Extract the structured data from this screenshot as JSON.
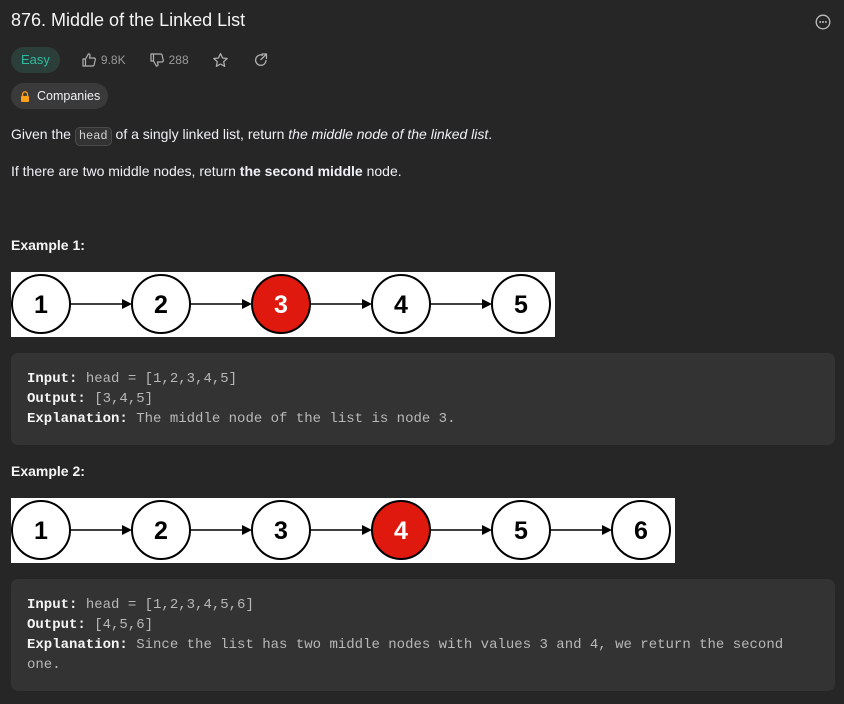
{
  "problem": {
    "title": "876. Middle of the Linked List",
    "difficulty": "Easy",
    "likes": "9.8K",
    "dislikes": "288",
    "companies_label": "Companies"
  },
  "description": {
    "p1_a": "Given the ",
    "p1_code": "head",
    "p1_b": " of a singly linked list, return ",
    "p1_em": "the middle node of the linked list",
    "p1_c": ".",
    "p2_a": "If there are two middle nodes, return ",
    "p2_strong": "the second middle",
    "p2_b": " node."
  },
  "examples": [
    {
      "title": "Example 1:",
      "nodes": [
        "1",
        "2",
        "3",
        "4",
        "5"
      ],
      "highlight_index": 2,
      "input_label": "Input:",
      "input_value": " head = [1,2,3,4,5]",
      "output_label": "Output:",
      "output_value": " [3,4,5]",
      "explanation_label": "Explanation:",
      "explanation_value": " The middle node of the list is node 3."
    },
    {
      "title": "Example 2:",
      "nodes": [
        "1",
        "2",
        "3",
        "4",
        "5",
        "6"
      ],
      "highlight_index": 3,
      "input_label": "Input:",
      "input_value": " head = [1,2,3,4,5,6]",
      "output_label": "Output:",
      "output_value": " [4,5,6]",
      "explanation_label": "Explanation:",
      "explanation_value": " Since the list has two middle nodes with values 3 and 4, we return the second one."
    }
  ],
  "icons": {
    "more": "more-options-icon",
    "like": "thumbs-up-icon",
    "dislike": "thumbs-down-icon",
    "star": "star-icon",
    "share": "share-icon",
    "lock": "lock-icon"
  },
  "colors": {
    "background": "#262626",
    "easy": "#2cbb9f",
    "highlight_node": "#e0190e",
    "code_bg": "#333333",
    "lock": "#ffa116"
  }
}
